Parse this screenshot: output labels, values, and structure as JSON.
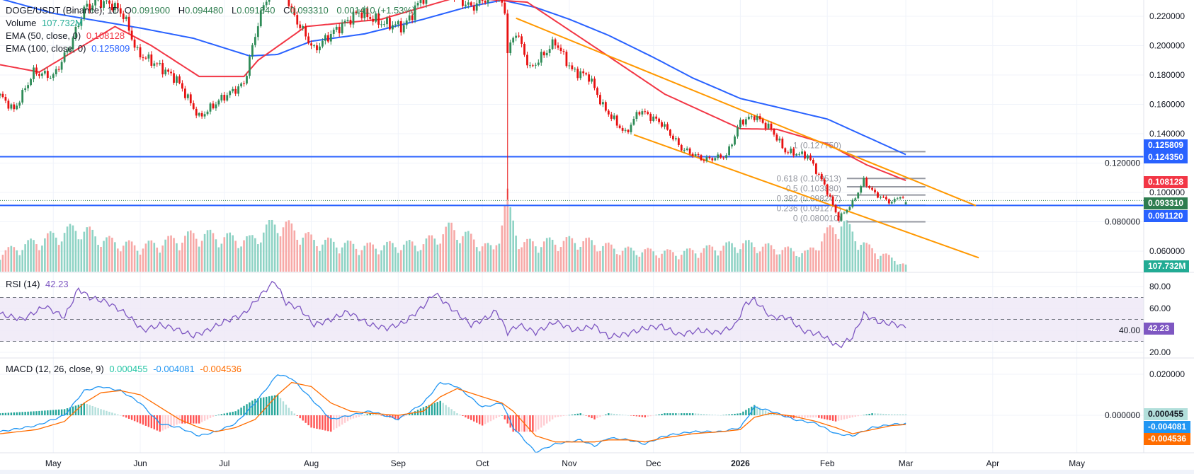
{
  "legend": {
    "symbol": "DOGE/USDT (Binance), 1D",
    "open_label": "O",
    "open": "0.091900",
    "high_label": "H",
    "high": "0.094480",
    "low_label": "L",
    "low": "0.091840",
    "close_label": "C",
    "close": "0.093310",
    "change": "0.001410 (+1.53%)",
    "volume_label": "Volume",
    "volume": "107.732M",
    "ema50_label": "EMA (50, close, 0)",
    "ema50": "0.108128",
    "ema100_label": "EMA (100, close, 0)",
    "ema100": "0.125809",
    "rsi_label": "RSI (14)",
    "rsi": "42.23",
    "macd_label": "MACD (12, 26, close, 9)",
    "macd_hist": "0.000455",
    "macd_line": "-0.004081",
    "macd_signal": "-0.004536"
  },
  "colors": {
    "up": "#2e8b57",
    "down": "#e81010",
    "ema50": "#f23645",
    "ema100": "#2962ff",
    "vol_up": "#8fd3c5",
    "vol_down": "#f7a9a7",
    "rsi": "#7e57c2",
    "rsi_band": "#ede7f6",
    "macd": "#2196f3",
    "signal": "#ff6d00",
    "hist_up_strong": "#26a69a",
    "hist_up_weak": "#b2dfdb",
    "hist_down_strong": "#ff5252",
    "hist_down_weak": "#ffcdd2",
    "channel": "#ff9800",
    "hline": "#2962ff",
    "fib": "#9598a1",
    "last_price": "#2e7d4f"
  },
  "chart_data": {
    "type": "candlestick",
    "symbol": "DOGE/USDT",
    "interval": "1D",
    "price_axis": {
      "ticks": [
        "0.220000",
        "0.200000",
        "0.180000",
        "0.160000",
        "0.140000",
        "0.120000",
        "0.100000",
        "0.080000",
        "0.060000"
      ]
    },
    "time_axis": [
      {
        "label": "May",
        "date": "2025-05-01"
      },
      {
        "label": "Jun",
        "date": "2025-06-01"
      },
      {
        "label": "Jul",
        "date": "2025-07-01"
      },
      {
        "label": "Aug",
        "date": "2025-08-01"
      },
      {
        "label": "Sep",
        "date": "2025-09-01"
      },
      {
        "label": "Oct",
        "date": "2025-10-01"
      },
      {
        "label": "Nov",
        "date": "2025-11-01"
      },
      {
        "label": "Dec",
        "date": "2025-12-01"
      },
      {
        "label": "2026",
        "date": "2026-01-01"
      },
      {
        "label": "Feb",
        "date": "2026-02-01"
      },
      {
        "label": "Mar",
        "date": "2026-03-01"
      },
      {
        "label": "Apr",
        "date": "2026-04-01"
      },
      {
        "label": "May",
        "date": "2026-05-01"
      }
    ],
    "close_series": [
      [
        "2025-04-12",
        0.166
      ],
      [
        "2025-04-17",
        0.156
      ],
      [
        "2025-04-24",
        0.182
      ],
      [
        "2025-05-01",
        0.179
      ],
      [
        "2025-05-07",
        0.2
      ],
      [
        "2025-05-12",
        0.225
      ],
      [
        "2025-05-17",
        0.23
      ],
      [
        "2025-05-22",
        0.228
      ],
      [
        "2025-05-26",
        0.221
      ],
      [
        "2025-05-31",
        0.195
      ],
      [
        "2025-06-07",
        0.187
      ],
      [
        "2025-06-14",
        0.177
      ],
      [
        "2025-06-22",
        0.151
      ],
      [
        "2025-06-30",
        0.164
      ],
      [
        "2025-07-08",
        0.174
      ],
      [
        "2025-07-13",
        0.2155
      ],
      [
        "2025-07-20",
        0.255
      ],
      [
        "2025-07-25",
        0.223
      ],
      [
        "2025-08-02",
        0.197
      ],
      [
        "2025-08-08",
        0.208
      ],
      [
        "2025-08-18",
        0.223
      ],
      [
        "2025-08-26",
        0.2155
      ],
      [
        "2025-09-03",
        0.213
      ],
      [
        "2025-09-09",
        0.231
      ],
      [
        "2025-09-16",
        0.241
      ],
      [
        "2025-09-27",
        0.226
      ],
      [
        "2025-10-05",
        0.236
      ],
      [
        "2025-10-09",
        0.225
      ],
      [
        "2025-10-10",
        0.195
      ],
      [
        "2025-10-13",
        0.21
      ],
      [
        "2025-10-18",
        0.184
      ],
      [
        "2025-10-27",
        0.2026
      ],
      [
        "2025-11-02",
        0.183
      ],
      [
        "2025-11-08",
        0.179
      ],
      [
        "2025-11-13",
        0.1585
      ],
      [
        "2025-11-21",
        0.14
      ],
      [
        "2025-11-26",
        0.156
      ],
      [
        "2025-12-04",
        0.147
      ],
      [
        "2025-12-11",
        0.13
      ],
      [
        "2025-12-19",
        0.1223
      ],
      [
        "2025-12-27",
        0.125
      ],
      [
        "2026-01-01",
        0.148
      ],
      [
        "2026-01-06",
        0.152
      ],
      [
        "2026-01-12",
        0.143
      ],
      [
        "2026-01-17",
        0.128
      ],
      [
        "2026-01-25",
        0.125
      ],
      [
        "2026-01-31",
        0.105
      ],
      [
        "2026-02-05",
        0.082
      ],
      [
        "2026-02-10",
        0.093
      ],
      [
        "2026-02-14",
        0.108
      ],
      [
        "2026-02-18",
        0.099
      ],
      [
        "2026-02-24",
        0.093
      ],
      [
        "2026-02-27",
        0.098
      ],
      [
        "2026-03-01",
        0.09331
      ]
    ],
    "crash_wick": {
      "date": "2025-10-10",
      "low": 0.095
    },
    "last_candle": {
      "date": "2026-03-01",
      "open": 0.0919,
      "high": 0.09448,
      "low": 0.09184,
      "close": 0.09331
    },
    "volume_series_m": [
      [
        "2025-04-12",
        300
      ],
      [
        "2025-05-10",
        700
      ],
      [
        "2025-05-20",
        500
      ],
      [
        "2025-06-01",
        400
      ],
      [
        "2025-06-22",
        600
      ],
      [
        "2025-07-10",
        500
      ],
      [
        "2025-07-20",
        800
      ],
      [
        "2025-08-02",
        500
      ],
      [
        "2025-08-20",
        400
      ],
      [
        "2025-09-10",
        450
      ],
      [
        "2025-09-20",
        700
      ],
      [
        "2025-10-05",
        350
      ],
      [
        "2025-10-10",
        1150
      ],
      [
        "2025-10-11",
        900
      ],
      [
        "2025-10-15",
        450
      ],
      [
        "2025-11-05",
        500
      ],
      [
        "2025-11-20",
        350
      ],
      [
        "2025-12-10",
        300
      ],
      [
        "2026-01-02",
        450
      ],
      [
        "2026-01-25",
        300
      ],
      [
        "2026-02-03",
        700
      ],
      [
        "2026-02-06",
        800
      ],
      [
        "2026-02-15",
        400
      ],
      [
        "2026-03-01",
        107.732
      ]
    ],
    "ema50": [
      [
        "2025-04-12",
        0.187
      ],
      [
        "2025-04-26",
        0.182
      ],
      [
        "2025-05-23",
        0.213
      ],
      [
        "2025-06-05",
        0.2
      ],
      [
        "2025-06-22",
        0.179
      ],
      [
        "2025-07-08",
        0.179
      ],
      [
        "2025-07-13",
        0.19
      ],
      [
        "2025-07-30",
        0.213
      ],
      [
        "2025-08-26",
        0.218
      ],
      [
        "2025-09-22",
        0.233
      ],
      [
        "2025-10-17",
        0.2296
      ],
      [
        "2025-11-14",
        0.194
      ],
      [
        "2025-12-05",
        0.167
      ],
      [
        "2026-01-01",
        0.1434
      ],
      [
        "2026-01-14",
        0.143
      ],
      [
        "2026-02-01",
        0.133
      ],
      [
        "2026-02-15",
        0.1188
      ],
      [
        "2026-03-01",
        0.108128
      ]
    ],
    "ema100": [
      [
        "2025-04-12",
        0.232
      ],
      [
        "2025-05-01",
        0.222
      ],
      [
        "2025-06-01",
        0.212
      ],
      [
        "2025-06-20",
        0.205
      ],
      [
        "2025-07-10",
        0.193
      ],
      [
        "2025-07-20",
        0.194
      ],
      [
        "2025-08-01",
        0.203
      ],
      [
        "2025-08-20",
        0.208
      ],
      [
        "2025-09-10",
        0.218
      ],
      [
        "2025-09-25",
        0.226
      ],
      [
        "2025-10-08",
        0.231
      ],
      [
        "2025-10-20",
        0.226
      ],
      [
        "2025-11-01",
        0.218
      ],
      [
        "2025-11-15",
        0.207
      ],
      [
        "2025-12-01",
        0.192
      ],
      [
        "2025-12-15",
        0.178
      ],
      [
        "2026-01-01",
        0.164
      ],
      [
        "2026-02-01",
        0.15
      ],
      [
        "2026-03-01",
        0.125809
      ]
    ],
    "horizontal_lines": [
      0.12435,
      0.09112
    ],
    "channel": {
      "upper": [
        [
          "2025-10-13",
          0.2187
        ],
        [
          "2026-03-26",
          0.091
        ]
      ],
      "lower": [
        [
          "2025-11-24",
          0.1393
        ],
        [
          "2026-03-27",
          0.0555
        ]
      ]
    },
    "fib": {
      "start_date": "2026-02-08",
      "end_date": "2026-03-08",
      "levels": [
        {
          "label": "1 (0.127750)",
          "price": 0.12775
        },
        {
          "label": "0.618 (0.109513)",
          "price": 0.109513
        },
        {
          "label": "0.5 (0.103880)",
          "price": 0.10388
        },
        {
          "label": "0.382 (0.098247)",
          "price": 0.098247
        },
        {
          "label": "0.236 (0.091277)",
          "price": 0.091277
        },
        {
          "label": "0 (0.080010)",
          "price": 0.08001
        }
      ]
    },
    "rsi": {
      "ticks": [
        "80.00",
        "60.00",
        "40.00",
        "20.00"
      ],
      "band": [
        30,
        70
      ],
      "mid": 50,
      "series": [
        [
          "2025-04-12",
          55
        ],
        [
          "2025-04-20",
          50
        ],
        [
          "2025-04-28",
          62
        ],
        [
          "2025-05-05",
          52
        ],
        [
          "2025-05-10",
          78
        ],
        [
          "2025-05-14",
          70
        ],
        [
          "2025-05-20",
          66
        ],
        [
          "2025-05-27",
          55
        ],
        [
          "2025-06-02",
          40
        ],
        [
          "2025-06-08",
          45
        ],
        [
          "2025-06-13",
          42
        ],
        [
          "2025-06-20",
          35
        ],
        [
          "2025-06-25",
          40
        ],
        [
          "2025-07-01",
          48
        ],
        [
          "2025-07-08",
          55
        ],
        [
          "2025-07-15",
          75
        ],
        [
          "2025-07-19",
          85
        ],
        [
          "2025-07-23",
          65
        ],
        [
          "2025-07-28",
          60
        ],
        [
          "2025-08-02",
          45
        ],
        [
          "2025-08-08",
          50
        ],
        [
          "2025-08-14",
          57
        ],
        [
          "2025-08-22",
          45
        ],
        [
          "2025-08-28",
          42
        ],
        [
          "2025-09-03",
          47
        ],
        [
          "2025-09-10",
          62
        ],
        [
          "2025-09-14",
          74
        ],
        [
          "2025-09-20",
          60
        ],
        [
          "2025-09-27",
          45
        ],
        [
          "2025-10-03",
          52
        ],
        [
          "2025-10-06",
          58
        ],
        [
          "2025-10-10",
          38
        ],
        [
          "2025-10-14",
          45
        ],
        [
          "2025-10-20",
          38
        ],
        [
          "2025-10-27",
          48
        ],
        [
          "2025-11-03",
          40
        ],
        [
          "2025-11-10",
          44
        ],
        [
          "2025-11-15",
          34
        ],
        [
          "2025-11-22",
          37
        ],
        [
          "2025-11-28",
          42
        ],
        [
          "2025-12-04",
          44
        ],
        [
          "2025-12-10",
          36
        ],
        [
          "2025-12-17",
          40
        ],
        [
          "2025-12-24",
          38
        ],
        [
          "2025-12-30",
          44
        ],
        [
          "2026-01-03",
          65
        ],
        [
          "2026-01-06",
          68
        ],
        [
          "2026-01-12",
          52
        ],
        [
          "2026-01-18",
          52
        ],
        [
          "2026-01-23",
          40
        ],
        [
          "2026-01-30",
          36
        ],
        [
          "2026-02-05",
          25
        ],
        [
          "2026-02-10",
          34
        ],
        [
          "2026-02-14",
          55
        ],
        [
          "2026-02-20",
          47
        ],
        [
          "2026-02-25",
          46
        ],
        [
          "2026-03-01",
          42.23
        ]
      ]
    },
    "macd": {
      "ticks": [
        "0.020000",
        "0.000000"
      ],
      "dates": [
        "2025-04-12",
        "2025-04-25",
        "2025-05-05",
        "2025-05-12",
        "2025-05-18",
        "2025-05-25",
        "2025-06-01",
        "2025-06-08",
        "2025-06-15",
        "2025-06-22",
        "2025-06-28",
        "2025-07-05",
        "2025-07-12",
        "2025-07-20",
        "2025-07-25",
        "2025-08-01",
        "2025-08-08",
        "2025-08-15",
        "2025-08-22",
        "2025-09-01",
        "2025-09-10",
        "2025-09-16",
        "2025-09-22",
        "2025-10-01",
        "2025-10-08",
        "2025-10-12",
        "2025-10-20",
        "2025-10-27",
        "2025-11-05",
        "2025-11-10",
        "2025-11-15",
        "2025-11-22",
        "2025-11-28",
        "2025-12-05",
        "2025-12-15",
        "2025-12-25",
        "2026-01-01",
        "2026-01-06",
        "2026-01-12",
        "2026-01-20",
        "2026-01-28",
        "2026-02-04",
        "2026-02-10",
        "2026-02-17",
        "2026-02-24",
        "2026-03-01"
      ],
      "macd": [
        -0.008,
        -0.005,
        0.0,
        0.012,
        0.014,
        0.012,
        0.006,
        -0.004,
        -0.006,
        -0.01,
        -0.008,
        -0.004,
        0.006,
        0.02,
        0.018,
        0.008,
        -0.002,
        0.0,
        0.002,
        -0.002,
        0.006,
        0.016,
        0.014,
        0.004,
        0.006,
        -0.006,
        -0.018,
        -0.014,
        -0.012,
        -0.015,
        -0.011,
        -0.012,
        -0.014,
        -0.01,
        -0.008,
        -0.008,
        -0.006,
        0.004,
        0.002,
        -0.002,
        -0.004,
        -0.009,
        -0.01,
        -0.006,
        -0.0045,
        -0.004081
      ],
      "signal": [
        -0.009,
        -0.007,
        -0.003,
        0.006,
        0.011,
        0.012,
        0.01,
        0.004,
        -0.002,
        -0.006,
        -0.008,
        -0.006,
        -0.002,
        0.01,
        0.016,
        0.014,
        0.006,
        0.002,
        0.001,
        0.0,
        0.002,
        0.009,
        0.013,
        0.009,
        0.006,
        0.002,
        -0.01,
        -0.013,
        -0.013,
        -0.013,
        -0.012,
        -0.012,
        -0.013,
        -0.011,
        -0.009,
        -0.008,
        -0.007,
        -0.001,
        0.001,
        -0.0005,
        -0.003,
        -0.006,
        -0.009,
        -0.007,
        -0.005,
        -0.004536
      ]
    },
    "price_tags": [
      {
        "value": "0.125809",
        "bg": "#2962ff",
        "fg": "#ffffff",
        "price": 0.125809
      },
      {
        "value": "0.124350",
        "bg": "#2962ff",
        "fg": "#ffffff",
        "price": 0.12435
      },
      {
        "value": "0.108128",
        "bg": "#f23645",
        "fg": "#ffffff",
        "price": 0.108128
      },
      {
        "value": "0.093310",
        "bg": "#2e7d4f",
        "fg": "#ffffff",
        "price": 0.09331
      },
      {
        "value": "0.091120",
        "bg": "#2962ff",
        "fg": "#ffffff",
        "price": 0.09112
      }
    ],
    "volume_tag": {
      "value": "107.732M",
      "bg": "#22ab94",
      "fg": "#ffffff"
    },
    "rsi_tag": {
      "value": "42.23",
      "bg": "#7e57c2",
      "fg": "#ffffff"
    },
    "macd_tags": [
      {
        "value": "0.000455",
        "bg": "#b2dfdb",
        "fg": "#131722"
      },
      {
        "value": "-0.004081",
        "bg": "#2196f3",
        "fg": "#ffffff"
      },
      {
        "value": "-0.004536",
        "bg": "#ff6d00",
        "fg": "#ffffff"
      }
    ]
  }
}
